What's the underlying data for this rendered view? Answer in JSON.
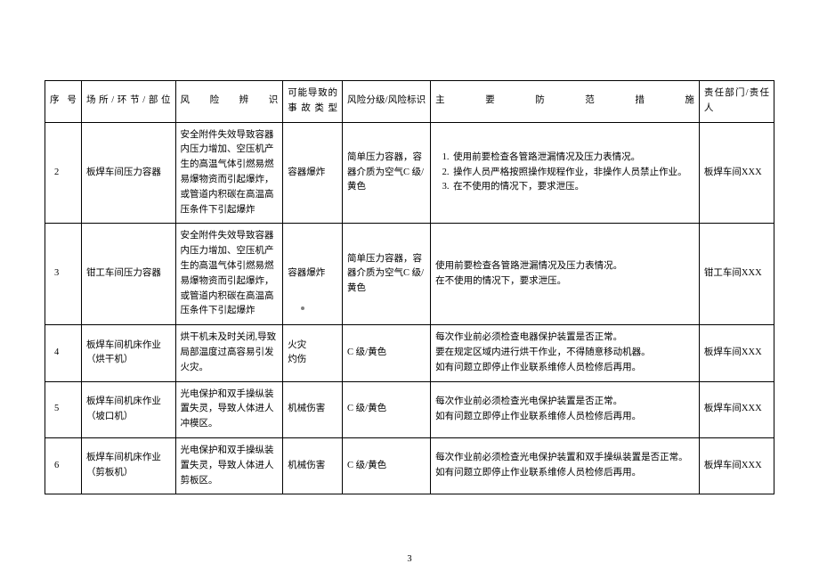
{
  "pageNumber": "3",
  "columns": {
    "seq": "序号",
    "place": "场所/环节/部位",
    "riskId": "风险辨识",
    "accident": "可能导致的事故类型",
    "level": "风险分级/风险标识",
    "measure": "主要防范措施",
    "resp": "责任部门/责任人"
  },
  "rows": [
    {
      "seq": "2",
      "place": "板焊车间压力容器",
      "riskId": "安全附件失效导致容器内压力增加、空压机产生的高温气体引燃易燃易爆物资而引起爆炸，或管道内积碳在高温高压条件下引起爆炸",
      "accident": "容器爆炸",
      "level": "简单压力容器，容器介质为空气C 级/黄色",
      "measureList": [
        "使用前要检查各管路泄漏情况及压力表情况。",
        "操作人员严格按照操作规程作业，非操作人员禁止作业。",
        "在不使用的情况下，要求泄压。"
      ],
      "resp": "板焊车间XXX"
    },
    {
      "seq": "3",
      "place": "钳工车间压力容器",
      "riskId": "安全附件失效导致容器内压力增加、空压机产生的高温气体引燃易燃易爆物资而引起爆炸，或管道内积碳在高温高压条件下引起爆炸",
      "accident": "容器爆炸",
      "level": "简单压力容器，容器介质为空气C 级/黄色",
      "measureText": "使用前要检查各管路泄漏情况及压力表情况。\n在不使用的情况下，要求泄压。",
      "resp": "钳工车间XXX"
    },
    {
      "seq": "4",
      "place": "板焊车间机床作业（烘干机）",
      "riskId": "烘干机未及时关闭,导致局部温度过高容易引发火灾。",
      "accident": "火灾\n灼伤",
      "level": "C 级/黄色",
      "measureText": "每次作业前必须检查电器保护装置是否正常。\n要在规定区域内进行烘干作业，不得随意移动机器。\n如有问题立即停止作业联系维修人员检修后再用。",
      "resp": "板焊车间XXX"
    },
    {
      "seq": "5",
      "place": "板焊车间机床作业（坡口机）",
      "riskId": "光电保护和双手操纵装置失灵，导致人体进人冲模区。",
      "accident": "机械伤害",
      "level": "C 级/黄色",
      "measureText": "每次作业前必须检查光电保护装置是否正常。\n如有问题立即停止作业联系维修人员检修后再用。",
      "resp": "板焊车间XXX"
    },
    {
      "seq": "6",
      "place": "板焊车间机床作业（剪板机）",
      "riskId": "光电保护和双手操纵装置失灵，导致人体进人剪板区。",
      "accident": "机械伤害",
      "level": "C 级/黄色",
      "measureText": "每次作业前必须检查光电保护装置和双手操纵装置是否正常。\n如有问题立即停止作业联系维修人员检修后再用。",
      "resp": "板焊车间XXX"
    }
  ],
  "style": {
    "fontSizeBody": 10.5,
    "borderColor": "#000000",
    "background": "#ffffff",
    "dotColor": "#808080"
  }
}
